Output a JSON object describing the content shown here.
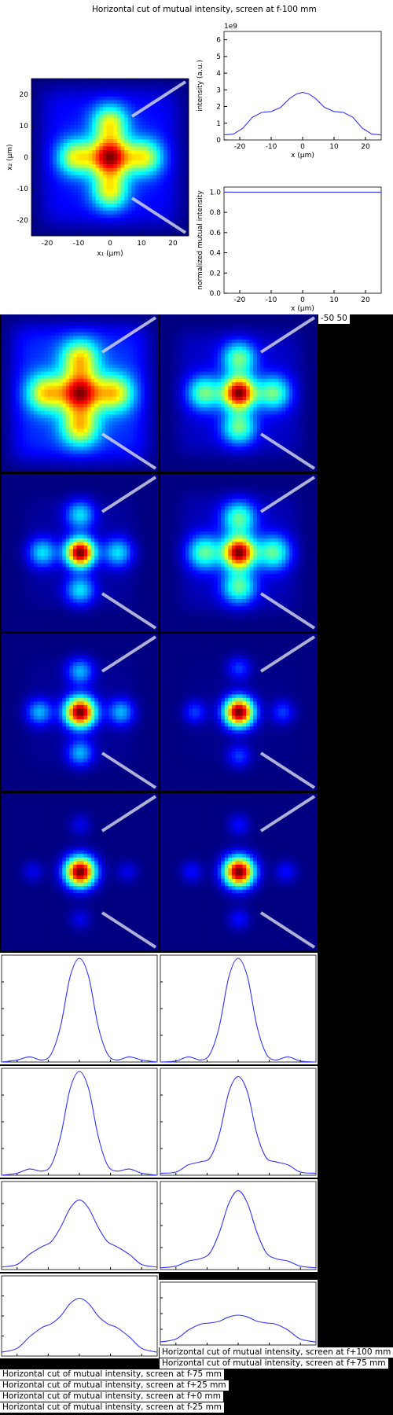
{
  "main_title": "Horizontal cut of mutual intensity, screen at f-100 mm",
  "overflow_label": "-50 50",
  "colors": {
    "line": "#3333ff",
    "background": "#000000"
  },
  "chart_data": [
    {
      "type": "heatmap",
      "id": "main-map",
      "colormap": "jet",
      "xlabel": "x₁ (µm)",
      "ylabel": "x₂ (µm)",
      "xlim": [
        -25,
        25
      ],
      "ylim": [
        -25,
        25
      ],
      "xticks": [
        -20,
        -10,
        0,
        10,
        20
      ],
      "yticks": [
        20,
        10,
        0,
        -10,
        -20
      ],
      "pattern": {
        "center_sigma": 4.5,
        "arm_offset": 11,
        "arm_sigma": 4,
        "arm_weight": 0.55,
        "floor": 0.16,
        "floor_span": 22
      },
      "cut_lines": "diagonal markers at upper-right and lower-right corners"
    },
    {
      "type": "line",
      "id": "intensity-cut",
      "xlabel": "x (µm)",
      "ylabel": "intensity (a.u.)",
      "scale_note": "1e9",
      "xlim": [
        -25,
        25
      ],
      "ylim": [
        0,
        6.5
      ],
      "xticks": [
        -20,
        -10,
        0,
        10,
        20
      ],
      "yticks": [
        0,
        1,
        2,
        3,
        4,
        5,
        6
      ],
      "x": [
        -25,
        -22,
        -19,
        -16,
        -13,
        -10,
        -7,
        -4,
        -2,
        0,
        2,
        4,
        7,
        10,
        13,
        16,
        19,
        22,
        25
      ],
      "y": [
        0.3,
        0.35,
        0.7,
        1.35,
        1.65,
        1.7,
        1.95,
        2.5,
        2.75,
        2.85,
        2.75,
        2.5,
        1.95,
        1.7,
        1.65,
        1.35,
        0.7,
        0.35,
        0.3
      ]
    },
    {
      "type": "line",
      "id": "mutual-cut",
      "xlabel": "x (µm)",
      "ylabel": "normalized mutual intensity",
      "xlim": [
        -25,
        25
      ],
      "ylim": [
        0,
        1.05
      ],
      "xticks": [
        -20,
        -10,
        0,
        10,
        20
      ],
      "yticks": [
        0.0,
        0.2,
        0.4,
        0.6,
        0.8,
        1.0
      ],
      "x": [
        -25,
        25
      ],
      "y": [
        1.0,
        1.0
      ]
    }
  ],
  "maps_grid": [
    {
      "center_sigma": 4.5,
      "arm_offset": 11,
      "arm_sigma": 4.2,
      "arm_weight": 0.62,
      "floor": 0.22,
      "floor_span": 22
    },
    {
      "center_sigma": 3.6,
      "arm_offset": 11,
      "arm_sigma": 3.8,
      "arm_weight": 0.45,
      "floor": 0.08,
      "floor_span": 20
    },
    {
      "center_sigma": 3.2,
      "arm_offset": 12,
      "arm_sigma": 3.3,
      "arm_weight": 0.32,
      "floor": 0.03,
      "floor_span": 18
    },
    {
      "center_sigma": 3.5,
      "arm_offset": 11,
      "arm_sigma": 3.8,
      "arm_weight": 0.44,
      "floor": 0.06,
      "floor_span": 19
    },
    {
      "center_sigma": 3.4,
      "arm_offset": 13,
      "arm_sigma": 3.0,
      "arm_weight": 0.28,
      "floor": 0.02,
      "floor_span": 18
    },
    {
      "center_sigma": 3.3,
      "arm_offset": 14,
      "arm_sigma": 2.6,
      "arm_weight": 0.17,
      "floor": 0.01,
      "floor_span": 18
    },
    {
      "center_sigma": 3.4,
      "arm_offset": 15,
      "arm_sigma": 2.4,
      "arm_weight": 0.1,
      "floor": 0.0,
      "floor_span": 18
    },
    {
      "center_sigma": 3.4,
      "arm_offset": 15,
      "arm_sigma": 2.4,
      "arm_weight": 0.13,
      "floor": 0.0,
      "floor_span": 18
    }
  ],
  "cuts_grid": [
    {
      "x": [
        -25,
        -20,
        -16,
        -12,
        -9,
        -6,
        -3,
        0,
        3,
        6,
        9,
        12,
        16,
        20,
        25
      ],
      "y": [
        0.0,
        0.02,
        0.05,
        0.02,
        0.08,
        0.35,
        0.82,
        1.0,
        0.82,
        0.35,
        0.08,
        0.02,
        0.05,
        0.02,
        0.0
      ]
    },
    {
      "x": [
        -25,
        -20,
        -16,
        -12,
        -9,
        -6,
        -3,
        0,
        3,
        6,
        9,
        12,
        16,
        20,
        25
      ],
      "y": [
        0.0,
        0.01,
        0.05,
        0.02,
        0.08,
        0.35,
        0.82,
        1.0,
        0.82,
        0.35,
        0.08,
        0.02,
        0.05,
        0.01,
        0.0
      ]
    },
    {
      "x": [
        -25,
        -20,
        -16,
        -12,
        -9,
        -6,
        -3,
        0,
        3,
        6,
        9,
        12,
        16,
        20,
        25
      ],
      "y": [
        0.0,
        0.02,
        0.06,
        0.04,
        0.1,
        0.38,
        0.83,
        1.0,
        0.83,
        0.38,
        0.1,
        0.04,
        0.06,
        0.02,
        0.0
      ]
    },
    {
      "x": [
        -25,
        -20,
        -16,
        -12,
        -9,
        -6,
        -3,
        0,
        3,
        6,
        9,
        12,
        16,
        20,
        25
      ],
      "y": [
        0.02,
        0.03,
        0.1,
        0.13,
        0.17,
        0.4,
        0.8,
        0.95,
        0.8,
        0.4,
        0.17,
        0.13,
        0.1,
        0.03,
        0.02
      ]
    },
    {
      "x": [
        -25,
        -20,
        -16,
        -12,
        -9,
        -6,
        -3,
        0,
        3,
        6,
        9,
        12,
        16,
        20,
        25
      ],
      "y": [
        0.03,
        0.06,
        0.18,
        0.27,
        0.33,
        0.5,
        0.72,
        0.82,
        0.72,
        0.5,
        0.33,
        0.27,
        0.18,
        0.06,
        0.03
      ]
    },
    {
      "x": [
        -25,
        -20,
        -16,
        -12,
        -9,
        -6,
        -3,
        0,
        3,
        6,
        9,
        12,
        16,
        20,
        25
      ],
      "y": [
        0.02,
        0.04,
        0.1,
        0.13,
        0.2,
        0.44,
        0.78,
        0.93,
        0.78,
        0.44,
        0.2,
        0.13,
        0.1,
        0.04,
        0.02
      ]
    },
    {
      "x": [
        -25,
        -20,
        -16,
        -12,
        -9,
        -6,
        -3,
        0,
        3,
        6,
        9,
        12,
        16,
        20,
        25
      ],
      "y": [
        0.05,
        0.1,
        0.25,
        0.37,
        0.42,
        0.52,
        0.68,
        0.75,
        0.68,
        0.52,
        0.42,
        0.37,
        0.25,
        0.1,
        0.05
      ]
    },
    {
      "x": [
        -25,
        -20,
        -16,
        -12,
        -9,
        -6,
        -3,
        0,
        3,
        6,
        9,
        12,
        16,
        20,
        25
      ],
      "y": [
        0.05,
        0.1,
        0.25,
        0.35,
        0.37,
        0.4,
        0.47,
        0.5,
        0.47,
        0.4,
        0.37,
        0.35,
        0.25,
        0.1,
        0.05
      ]
    }
  ],
  "captions": [
    "Horizontal cut of mutual intensity, screen at f+100 mm",
    "Horizontal cut of mutual intensity, screen at f+75 mm",
    "Horizontal cut of mutual intensity, screen at f-75 mm",
    "Horizontal cut of mutual intensity, screen at f+25 mm",
    "Horizontal cut of mutual intensity, screen at f+0 mm",
    "Horizontal cut of mutual intensity, screen at f-25 mm"
  ]
}
